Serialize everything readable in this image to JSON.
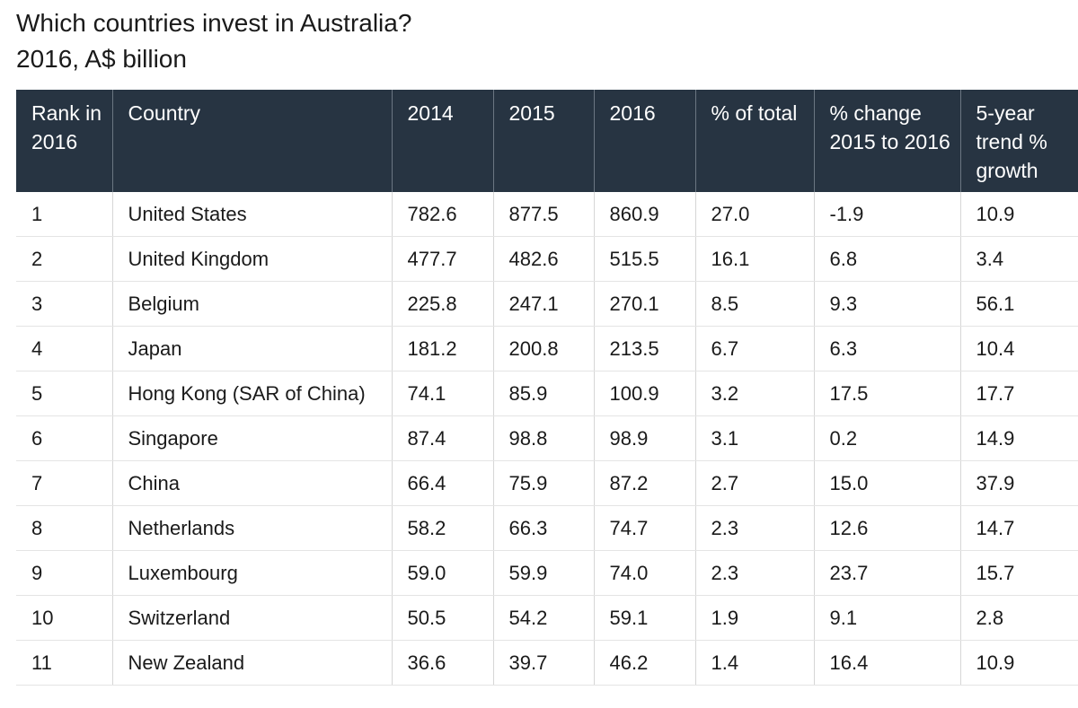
{
  "title": "Which countries invest in Australia?",
  "subtitle": "2016, A$ billion",
  "chart_data": {
    "type": "table",
    "title": "Which countries invest in Australia?",
    "subtitle": "2016, A$ billion",
    "columns": [
      "Rank in 2016",
      "Country",
      "2014",
      "2015",
      "2016",
      "% of total",
      "% change 2015 to 2016",
      "5-year trend % growth"
    ],
    "rows": [
      [
        "1",
        "United States",
        "782.6",
        "877.5",
        "860.9",
        "27.0",
        "-1.9",
        "10.9"
      ],
      [
        "2",
        "United Kingdom",
        "477.7",
        "482.6",
        "515.5",
        "16.1",
        "6.8",
        "3.4"
      ],
      [
        "3",
        "Belgium",
        "225.8",
        "247.1",
        "270.1",
        "8.5",
        "9.3",
        "56.1"
      ],
      [
        "4",
        "Japan",
        "181.2",
        "200.8",
        "213.5",
        "6.7",
        "6.3",
        "10.4"
      ],
      [
        "5",
        "Hong Kong (SAR of China)",
        "74.1",
        "85.9",
        "100.9",
        "3.2",
        "17.5",
        "17.7"
      ],
      [
        "6",
        "Singapore",
        "87.4",
        "98.8",
        "98.9",
        "3.1",
        "0.2",
        "14.9"
      ],
      [
        "7",
        "China",
        "66.4",
        "75.9",
        "87.2",
        "2.7",
        "15.0",
        "37.9"
      ],
      [
        "8",
        "Netherlands",
        "58.2",
        "66.3",
        "74.7",
        "2.3",
        "12.6",
        "14.7"
      ],
      [
        "9",
        "Luxembourg",
        "59.0",
        "59.9",
        "74.0",
        "2.3",
        "23.7",
        "15.7"
      ],
      [
        "10",
        "Switzerland",
        "50.5",
        "54.2",
        "59.1",
        "1.9",
        "9.1",
        "2.8"
      ],
      [
        "11",
        "New Zealand",
        "36.6",
        "39.7",
        "46.2",
        "1.4",
        "16.4",
        "10.9"
      ]
    ]
  },
  "colors": {
    "header_bg": "#273442",
    "header_text": "#ffffff",
    "row_border": "#e4e4e4"
  }
}
